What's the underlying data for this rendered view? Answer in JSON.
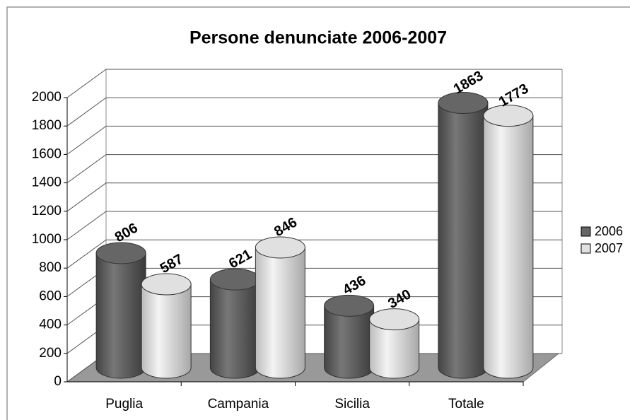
{
  "chart_data": {
    "type": "bar3d",
    "title": "Persone denunciate 2006-2007",
    "categories": [
      "Puglia",
      "Campania",
      "Sicilia",
      "Totale"
    ],
    "series": [
      {
        "name": "2006",
        "color": "#666666",
        "values": [
          806,
          621,
          436,
          1863
        ]
      },
      {
        "name": "2007",
        "color": "#e0e0e0",
        "values": [
          587,
          846,
          340,
          1773
        ]
      }
    ],
    "ylim": [
      0,
      2000
    ],
    "yticks": [
      0,
      200,
      400,
      600,
      800,
      1000,
      1200,
      1400,
      1600,
      1800,
      2000
    ],
    "grid": true,
    "legend": "right"
  }
}
